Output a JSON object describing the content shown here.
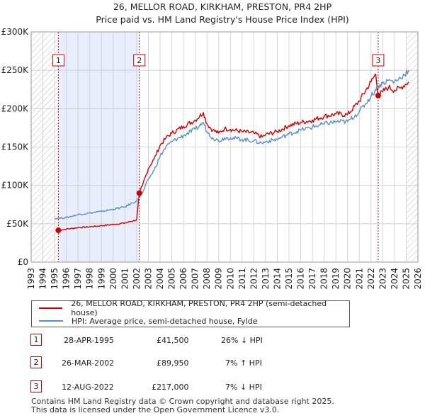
{
  "title_line1": "26, MELLOR ROAD, KIRKHAM, PRESTON, PR4 2HP",
  "title_line2": "Price paid vs. HM Land Registry's House Price Index (HPI)",
  "colors": {
    "property": "#cc0000",
    "hpi": "#5b8fc9",
    "shade": "#e8eefb",
    "grid": "#cccccc",
    "marker_line": "#cc0000"
  },
  "legend": {
    "property_label": "26, MELLOR ROAD, KIRKHAM, PRESTON, PR4 2HP (semi-detached house)",
    "hpi_label": "HPI: Average price, semi-detached house, Fylde"
  },
  "sales": [
    {
      "num": "1",
      "date": "28-APR-1995",
      "price": "£41,500",
      "hpi_rel": "26% ↓ HPI"
    },
    {
      "num": "2",
      "date": "26-MAR-2002",
      "price": "£89,950",
      "hpi_rel": "7% ↑ HPI"
    },
    {
      "num": "3",
      "date": "12-AUG-2022",
      "price": "£217,000",
      "hpi_rel": "7% ↓ HPI"
    }
  ],
  "footer": {
    "line1": "Contains HM Land Registry data © Crown copyright and database right 2025.",
    "line2": "This data is licensed under the Open Government Licence v3.0."
  },
  "chart_data": {
    "type": "line",
    "title": "26, MELLOR ROAD, KIRKHAM, PRESTON, PR4 2HP — Price paid vs. HM Land Registry's House Price Index (HPI)",
    "xlabel": "",
    "ylabel": "",
    "xlim": [
      1993,
      2026
    ],
    "ylim": [
      0,
      300000
    ],
    "x_ticks": [
      1993,
      1994,
      1995,
      1996,
      1997,
      1998,
      1999,
      2000,
      2001,
      2002,
      2003,
      2004,
      2005,
      2006,
      2007,
      2008,
      2009,
      2010,
      2011,
      2012,
      2013,
      2014,
      2015,
      2016,
      2017,
      2018,
      2019,
      2020,
      2021,
      2022,
      2023,
      2024,
      2025,
      2026
    ],
    "y_ticks": [
      {
        "value": 0,
        "label": "£0"
      },
      {
        "value": 50000,
        "label": "£50K"
      },
      {
        "value": 100000,
        "label": "£100K"
      },
      {
        "value": 150000,
        "label": "£150K"
      },
      {
        "value": 200000,
        "label": "£200K"
      },
      {
        "value": 250000,
        "label": "£250K"
      },
      {
        "value": 300000,
        "label": "£300K"
      }
    ],
    "grid": true,
    "shaded_periods": [
      [
        1995.32,
        2002.23
      ]
    ],
    "hatched_periods": [
      [
        1993,
        1995.32
      ],
      [
        2025.0,
        2026
      ]
    ],
    "sale_markers": [
      {
        "label": "1",
        "x": 1995.32,
        "y": 41500
      },
      {
        "label": "2",
        "x": 2002.23,
        "y": 89950
      },
      {
        "label": "3",
        "x": 2022.61,
        "y": 217000
      }
    ],
    "series": [
      {
        "name": "26, MELLOR ROAD, KIRKHAM, PRESTON, PR4 2HP (semi-detached house)",
        "color": "#cc0000",
        "x": [
          1995.32,
          1996,
          1997,
          1998,
          1999,
          2000,
          2001,
          2002.0,
          2002.23,
          2002.5,
          2003,
          2003.5,
          2004,
          2004.5,
          2005,
          2006,
          2007,
          2007.7,
          2008,
          2008.5,
          2009,
          2009.5,
          2010,
          2011,
          2012,
          2012.7,
          2013,
          2014,
          2015,
          2016,
          2017,
          2018,
          2019,
          2020,
          2021,
          2022.0,
          2022.4,
          2022.61,
          2023,
          2023.5,
          2024,
          2024.5,
          2025.2
        ],
        "y": [
          41500,
          43000,
          45000,
          46000,
          47500,
          49000,
          51000,
          55000,
          89950,
          100000,
          122000,
          135000,
          152000,
          162000,
          168000,
          177000,
          185000,
          195000,
          180000,
          172000,
          168000,
          174000,
          173000,
          170000,
          168000,
          163000,
          166000,
          170000,
          178000,
          182000,
          185000,
          190000,
          193000,
          192000,
          210000,
          235000,
          245000,
          217000,
          222000,
          228000,
          224000,
          227000,
          235000
        ]
      },
      {
        "name": "HPI: Average price, semi-detached house, Fylde",
        "color": "#5b8fc9",
        "x": [
          1995.0,
          1996,
          1997,
          1998,
          1999,
          2000,
          2001,
          2002.0,
          2002.5,
          2003,
          2003.5,
          2004,
          2004.5,
          2005,
          2006,
          2007,
          2007.7,
          2008,
          2008.5,
          2009,
          2009.5,
          2010,
          2011,
          2012,
          2012.7,
          2013,
          2014,
          2015,
          2016,
          2017,
          2018,
          2019,
          2020,
          2021,
          2022.0,
          2022.6,
          2023,
          2023.5,
          2024,
          2024.5,
          2025.2
        ],
        "y": [
          57000,
          58000,
          62000,
          64000,
          66000,
          69000,
          72000,
          80000,
          90000,
          108000,
          120000,
          138000,
          150000,
          157000,
          165000,
          173000,
          182000,
          170000,
          162000,
          158000,
          162000,
          162000,
          160000,
          158000,
          155000,
          157000,
          160000,
          167000,
          172000,
          176000,
          180000,
          183000,
          183000,
          196000,
          216000,
          230000,
          233000,
          237000,
          235000,
          240000,
          250000
        ]
      }
    ]
  }
}
